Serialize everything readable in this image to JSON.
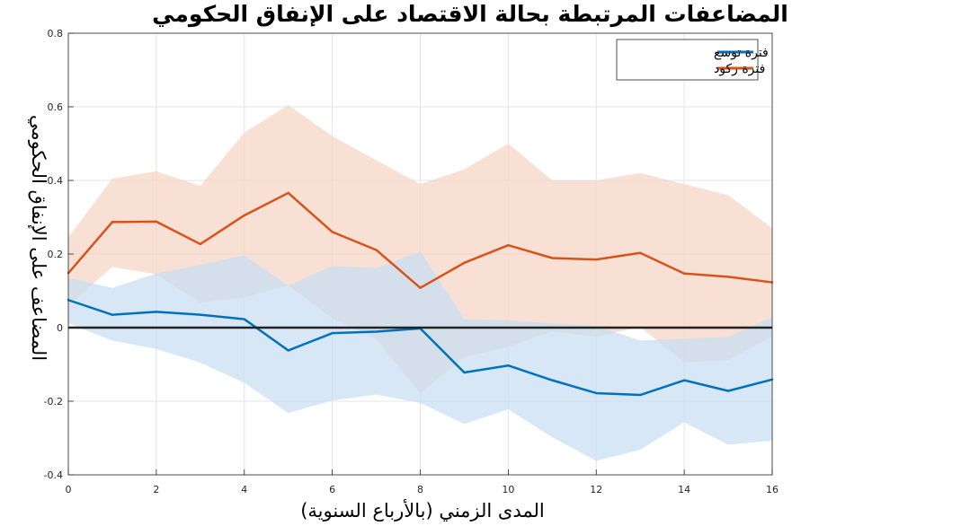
{
  "chart_data": {
    "type": "line",
    "title": "المضاعفات المرتبطة بحالة الاقتصاد على الإنفاق الحكومي",
    "xlabel": "المدى الزمني (بالأرباع السنوية)",
    "ylabel": "المضاعف على الإنفاق الحكومي",
    "xlim": [
      0,
      16
    ],
    "ylim": [
      -0.4,
      0.8
    ],
    "xticks": [
      "0",
      "2",
      "4",
      "6",
      "8",
      "10",
      "12",
      "14",
      "16"
    ],
    "yticks": [
      "-0.4",
      "-0.2",
      "0",
      "0.2",
      "0.4",
      "0.6",
      "0.8"
    ],
    "grid": true,
    "legend_position": "top-right",
    "x": [
      0,
      1,
      2,
      3,
      4,
      5,
      6,
      7,
      8,
      9,
      10,
      11,
      12,
      13,
      14,
      15,
      16
    ],
    "series": [
      {
        "name": "فترة توسع",
        "color": "#0072BD",
        "band_color": "#C9DFF1",
        "values": [
          0.075,
          0.035,
          0.043,
          0.035,
          0.023,
          -0.062,
          -0.015,
          -0.011,
          -0.002,
          -0.122,
          -0.103,
          -0.143,
          -0.178,
          -0.183,
          -0.143,
          -0.172,
          -0.141
        ],
        "upper": [
          0.135,
          0.108,
          0.147,
          0.17,
          0.197,
          0.114,
          0.168,
          0.162,
          0.208,
          0.023,
          0.02,
          0.012,
          0.005,
          -0.035,
          -0.03,
          -0.025,
          0.028
        ],
        "lower": [
          0.012,
          -0.035,
          -0.058,
          -0.095,
          -0.15,
          -0.232,
          -0.198,
          -0.182,
          -0.205,
          -0.262,
          -0.222,
          -0.298,
          -0.362,
          -0.332,
          -0.257,
          -0.318,
          -0.307
        ]
      },
      {
        "name": "فترة ركود",
        "color": "#D95319",
        "band_color": "#F6D6C7",
        "values": [
          0.148,
          0.287,
          0.288,
          0.227,
          0.305,
          0.366,
          0.26,
          0.211,
          0.108,
          0.176,
          0.224,
          0.189,
          0.185,
          0.203,
          0.147,
          0.138,
          0.123
        ],
        "upper": [
          0.245,
          0.405,
          0.425,
          0.385,
          0.53,
          0.605,
          0.52,
          0.455,
          0.39,
          0.43,
          0.5,
          0.4,
          0.4,
          0.42,
          0.39,
          0.36,
          0.27
        ],
        "lower": [
          0.06,
          0.165,
          0.145,
          0.068,
          0.082,
          0.115,
          0.025,
          -0.032,
          -0.178,
          -0.08,
          -0.052,
          -0.01,
          -0.025,
          0.002,
          -0.095,
          -0.088,
          -0.025
        ]
      }
    ]
  }
}
